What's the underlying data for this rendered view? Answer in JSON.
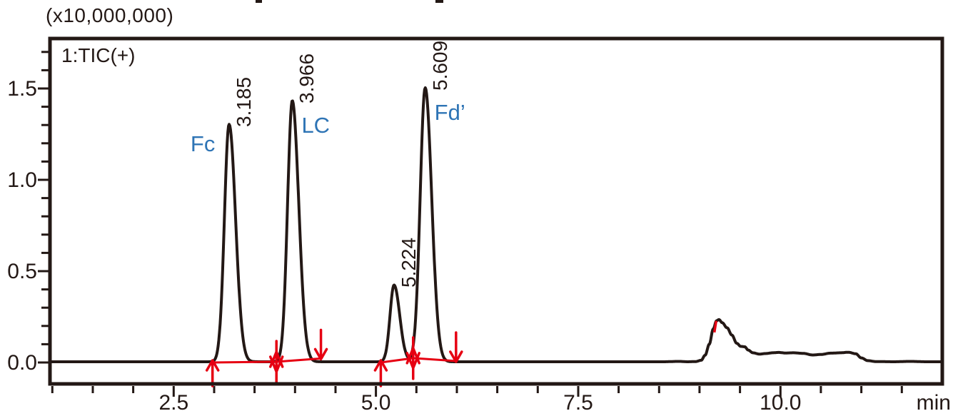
{
  "plot": {
    "y_axis_multiplier": "(x10,000,000)",
    "trace_label": "1:TIC(+)",
    "x_unit_label": "min"
  },
  "colors": {
    "trace": "#231815",
    "axis": "#231815",
    "marker_red": "#e60012",
    "compound_blue": "#2e74b5",
    "background": "#ffffff"
  },
  "chart_data": {
    "type": "line",
    "title": "1:TIC(+)",
    "xlabel": "min",
    "ylabel": "(x10,000,000)",
    "xlim": [
      0.97,
      12.0
    ],
    "ylim": [
      -0.125,
      1.8
    ],
    "grid": false,
    "x_axis": {
      "major_ticks": [
        2.5,
        5.0,
        7.5,
        10.0
      ],
      "major_tick_labels": [
        "2.5",
        "5.0",
        "7.5",
        "10.0"
      ],
      "minor_tick_step": 0.5,
      "minor_tick_start": 1.0,
      "minor_tick_end": 11.5,
      "unit": "min"
    },
    "y_axis": {
      "major_ticks": [
        0.0,
        0.5,
        1.0,
        1.5
      ],
      "major_tick_labels": [
        "0.0",
        "0.5",
        "1.0",
        "1.5"
      ],
      "minor_tick_step": 0.1,
      "minor_tick_start": 0.1,
      "minor_tick_end": 1.7,
      "multiplier_label": "(x10,000,000)"
    },
    "baseline_level": 0.004,
    "peaks": [
      {
        "rt": 3.185,
        "rt_label": "3.185",
        "compound": "Fc",
        "label_side": "left",
        "height": 1.3,
        "sigma_left": 0.058,
        "sigma_right": 0.08
      },
      {
        "rt": 3.966,
        "rt_label": "3.966",
        "compound": "LC",
        "label_side": "right",
        "height": 1.43,
        "sigma_left": 0.058,
        "sigma_right": 0.08
      },
      {
        "rt": 5.224,
        "rt_label": "5.224",
        "compound": "",
        "label_side": "right",
        "height": 0.42,
        "sigma_left": 0.05,
        "sigma_right": 0.07
      },
      {
        "rt": 5.609,
        "rt_label": "5.609",
        "compound": "Fd’",
        "label_side": "right",
        "height": 1.5,
        "sigma_left": 0.062,
        "sigma_right": 0.08
      }
    ],
    "baseline_disturbance": [
      [
        8.55,
        0
      ],
      [
        8.75,
        0.002
      ],
      [
        8.85,
        0
      ],
      [
        8.95,
        0.001
      ],
      [
        9.02,
        0.008
      ],
      [
        9.07,
        0.036
      ],
      [
        9.12,
        0.096
      ],
      [
        9.17,
        0.18
      ],
      [
        9.21,
        0.224
      ],
      [
        9.24,
        0.231
      ],
      [
        9.28,
        0.214
      ],
      [
        9.34,
        0.186
      ],
      [
        9.4,
        0.146
      ],
      [
        9.46,
        0.101
      ],
      [
        9.51,
        0.084
      ],
      [
        9.56,
        0.082
      ],
      [
        9.6,
        0.064
      ],
      [
        9.66,
        0.049
      ],
      [
        9.74,
        0.042
      ],
      [
        9.82,
        0.045
      ],
      [
        9.9,
        0.049
      ],
      [
        9.98,
        0.051
      ],
      [
        10.06,
        0.048
      ],
      [
        10.16,
        0.049
      ],
      [
        10.28,
        0.046
      ],
      [
        10.4,
        0.037
      ],
      [
        10.5,
        0.04
      ],
      [
        10.62,
        0.047
      ],
      [
        10.74,
        0.049
      ],
      [
        10.84,
        0.052
      ],
      [
        10.93,
        0.044
      ],
      [
        11.0,
        0.021
      ],
      [
        11.08,
        0.006
      ],
      [
        11.18,
        0.001
      ],
      [
        11.4,
        0
      ],
      [
        11.6,
        0.002
      ],
      [
        11.8,
        0
      ],
      [
        12.0,
        0
      ]
    ],
    "integration": {
      "groups": [
        {
          "baseline": [
            [
              2.98,
              0.0
            ],
            [
              3.77,
              0.004
            ],
            [
              4.32,
              0.022
            ]
          ],
          "markers": [
            {
              "t": 2.98,
              "v": 0.0,
              "type": "start"
            },
            {
              "t": 3.77,
              "v": 0.004,
              "type": "valley"
            },
            {
              "t": 4.32,
              "v": 0.022,
              "type": "end"
            }
          ]
        },
        {
          "baseline": [
            [
              5.06,
              0.0
            ],
            [
              5.46,
              0.024
            ],
            [
              5.99,
              0.008
            ]
          ],
          "markers": [
            {
              "t": 5.06,
              "v": 0.0,
              "type": "start"
            },
            {
              "t": 5.46,
              "v": 0.024,
              "type": "valley"
            },
            {
              "t": 5.99,
              "v": 0.008,
              "type": "end"
            }
          ]
        }
      ],
      "slope_mark": {
        "t1": 9.183,
        "v1": 0.165,
        "t2": 9.206,
        "v2": 0.228
      }
    }
  }
}
